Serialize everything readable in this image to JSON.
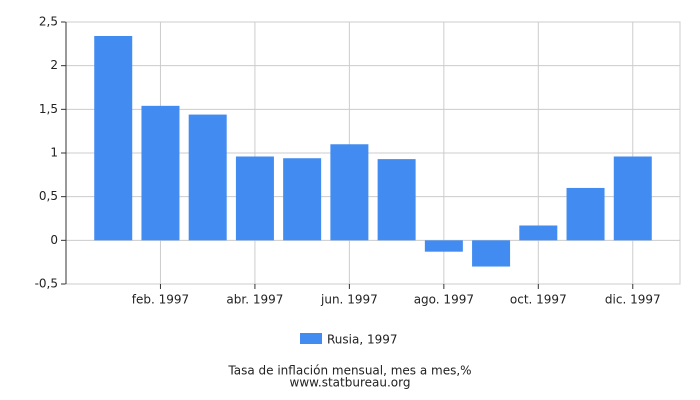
{
  "chart_data": {
    "type": "bar",
    "title": "Tasa de inflación mensual, mes a mes,%",
    "source": "www.statbureau.org",
    "categories": [
      null,
      "feb. 1997",
      null,
      "abr. 1997",
      null,
      "jun. 1997",
      null,
      "ago. 1997",
      null,
      "oct. 1997",
      null,
      "dic. 1997"
    ],
    "series": [
      {
        "name": "Rusia, 1997",
        "color": "#428bf0",
        "values": [
          2.34,
          1.54,
          1.44,
          0.96,
          0.94,
          1.1,
          0.93,
          -0.13,
          -0.3,
          0.17,
          0.6,
          0.96
        ]
      }
    ],
    "ylim": [
      -0.5,
      2.5
    ],
    "yticks": [
      {
        "value": -0.5,
        "label": "-0,5"
      },
      0,
      {
        "value": 0.5,
        "label": "0,5"
      },
      1,
      {
        "value": 1.5,
        "label": "1,5"
      },
      2,
      {
        "value": 2.5,
        "label": "2,5"
      }
    ],
    "grid": true
  }
}
